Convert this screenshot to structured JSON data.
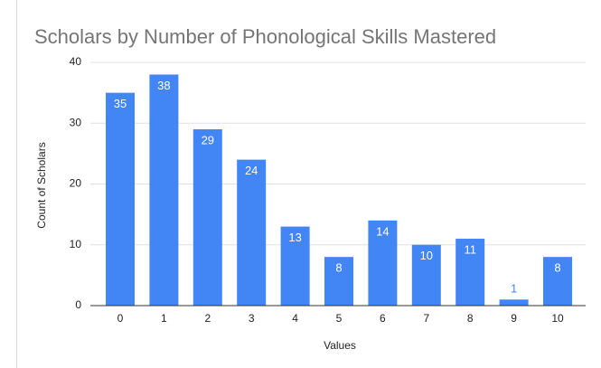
{
  "chart_data": {
    "type": "bar",
    "title": "Scholars by Number of Phonological Skills Mastered",
    "x_label": "Values",
    "y_label": "Count of Scholars",
    "categories": [
      "0",
      "1",
      "2",
      "3",
      "4",
      "5",
      "6",
      "7",
      "8",
      "9",
      "10"
    ],
    "values": [
      35,
      38,
      29,
      24,
      13,
      8,
      14,
      10,
      11,
      1,
      8
    ],
    "color": "#4285f4",
    "ylim": [
      0,
      40
    ],
    "yticks": [
      0,
      10,
      20,
      30,
      40
    ],
    "grid": true
  }
}
